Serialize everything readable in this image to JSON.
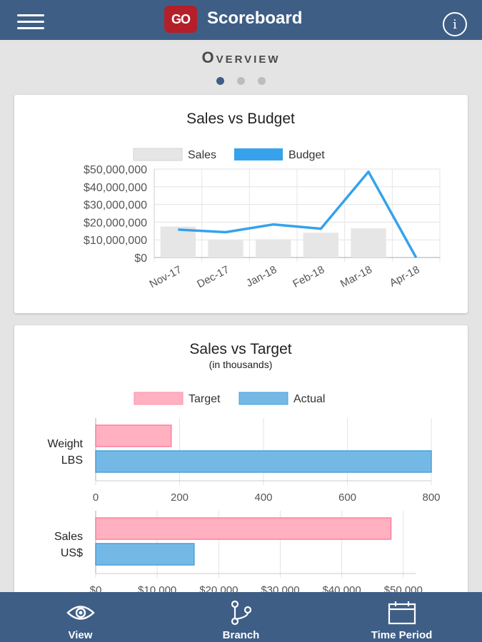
{
  "header": {
    "logo_text": "GO",
    "title": "Scoreboard",
    "info_label": "i"
  },
  "page": {
    "title": "Overview",
    "pager": {
      "count": 3,
      "active": 0
    }
  },
  "colors": {
    "brand": "#3e5e86",
    "logo": "#b3202a",
    "sales_bar": "#e6e6e6",
    "budget_line": "#36a2eb",
    "target": "#ffb1c1",
    "actual": "#74b9e6"
  },
  "chart_data": [
    {
      "type": "bar+line",
      "title": "Sales vs Budget",
      "legend": [
        "Sales",
        "Budget"
      ],
      "categories": [
        "Nov-17",
        "Dec-17",
        "Jan-18",
        "Feb-18",
        "Mar-18",
        "Apr-18"
      ],
      "series": [
        {
          "name": "Sales",
          "type": "bar",
          "values": [
            17500000,
            9800000,
            10300000,
            14000000,
            16500000,
            0
          ]
        },
        {
          "name": "Budget",
          "type": "line",
          "values": [
            15800000,
            14300000,
            18700000,
            16300000,
            48500000,
            0
          ]
        }
      ],
      "ylim": [
        0,
        50000000
      ],
      "yticks": [
        0,
        10000000,
        20000000,
        30000000,
        40000000,
        50000000
      ],
      "ytick_labels": [
        "$0",
        "$10,000,000",
        "$20,000,000",
        "$30,000,000",
        "$40,000,000",
        "$50,000,000"
      ]
    },
    {
      "type": "bar",
      "orientation": "horizontal",
      "title": "Sales vs Target",
      "subtitle": "(in thousands)",
      "legend": [
        "Target",
        "Actual"
      ],
      "panels": [
        {
          "category": [
            "Weight",
            "LBS"
          ],
          "target": 180,
          "actual": 800,
          "xlim": [
            0,
            800
          ],
          "xticks": [
            0,
            200,
            400,
            600,
            800
          ],
          "xtick_labels": [
            "0",
            "200",
            "400",
            "600",
            "800"
          ]
        },
        {
          "category": [
            "Sales",
            "US$"
          ],
          "target": 48000,
          "actual": 16000,
          "xlim": [
            0,
            52000
          ],
          "xticks": [
            0,
            10000,
            20000,
            30000,
            40000,
            50000
          ],
          "xtick_labels": [
            "$0",
            "$10,000",
            "$20,000",
            "$30,000",
            "$40,000",
            "$50,000"
          ]
        }
      ]
    }
  ],
  "bottom_nav": [
    {
      "label": "View",
      "icon": "eye-icon"
    },
    {
      "label": "Branch",
      "icon": "branch-icon"
    },
    {
      "label": "Time Period",
      "icon": "calendar-icon"
    }
  ]
}
